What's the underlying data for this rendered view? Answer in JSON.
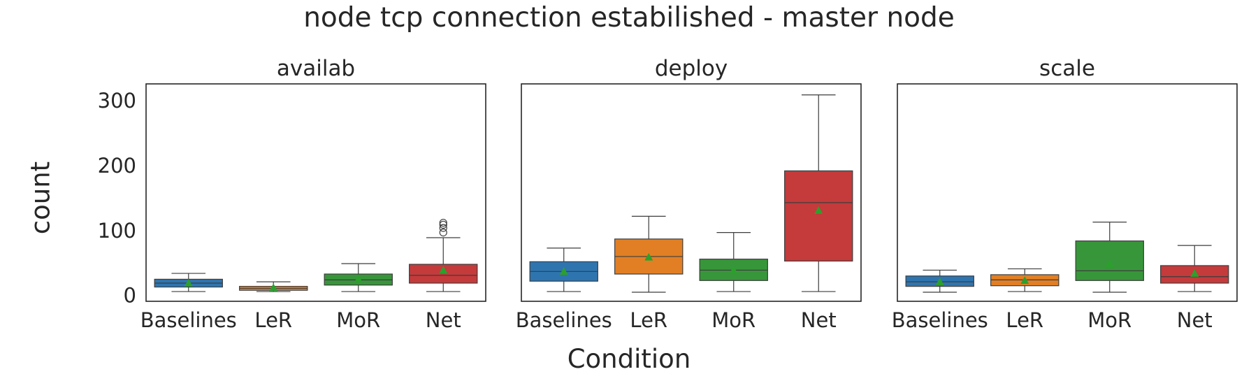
{
  "chart_data": {
    "type": "box",
    "title": "node tcp connection estabilished - master node",
    "xlabel": "Condition",
    "ylabel": "count",
    "ylim": [
      -10,
      325
    ],
    "yticks": [
      0,
      100,
      200,
      300
    ],
    "grid": false,
    "categories": [
      "Baselines",
      "LeR",
      "MoR",
      "Net"
    ],
    "colors": [
      "#2e75b0",
      "#e27f24",
      "#37963a",
      "#c53a3b"
    ],
    "mean_marker_color": "#2ca02c",
    "panels": [
      {
        "title": "availab",
        "boxes": [
          {
            "category": "Baselines",
            "whislo": 5,
            "q1": 12,
            "med": 18,
            "q3": 24,
            "whishi": 33,
            "mean": 18,
            "fliers": []
          },
          {
            "category": "LeR",
            "whislo": 5,
            "q1": 7,
            "med": 10,
            "q3": 13,
            "whishi": 20,
            "mean": 11,
            "fliers": []
          },
          {
            "category": "MoR",
            "whislo": 5,
            "q1": 15,
            "med": 23,
            "q3": 32,
            "whishi": 48,
            "mean": 24,
            "fliers": []
          },
          {
            "category": "Net",
            "whislo": 5,
            "q1": 18,
            "med": 30,
            "q3": 47,
            "whishi": 88,
            "mean": 38,
            "fliers": [
              96,
              103,
              108,
              111
            ]
          }
        ]
      },
      {
        "title": "deploy",
        "boxes": [
          {
            "category": "Baselines",
            "whislo": 5,
            "q1": 21,
            "med": 36,
            "q3": 51,
            "whishi": 72,
            "mean": 36,
            "fliers": []
          },
          {
            "category": "LeR",
            "whislo": 4,
            "q1": 32,
            "med": 59,
            "q3": 86,
            "whishi": 121,
            "mean": 58,
            "fliers": []
          },
          {
            "category": "MoR",
            "whislo": 5,
            "q1": 22,
            "med": 38,
            "q3": 55,
            "whishi": 96,
            "mean": 38,
            "fliers": []
          },
          {
            "category": "Net",
            "whislo": 5,
            "q1": 52,
            "med": 142,
            "q3": 191,
            "whishi": 308,
            "mean": 130,
            "fliers": []
          }
        ]
      },
      {
        "title": "scale",
        "boxes": [
          {
            "category": "Baselines",
            "whislo": 4,
            "q1": 13,
            "med": 20,
            "q3": 29,
            "whishi": 38,
            "mean": 20,
            "fliers": []
          },
          {
            "category": "LeR",
            "whislo": 5,
            "q1": 14,
            "med": 23,
            "q3": 31,
            "whishi": 40,
            "mean": 22,
            "fliers": []
          },
          {
            "category": "MoR",
            "whislo": 4,
            "q1": 22,
            "med": 37,
            "q3": 83,
            "whishi": 112,
            "mean": 48,
            "fliers": []
          },
          {
            "category": "Net",
            "whislo": 5,
            "q1": 18,
            "med": 28,
            "q3": 45,
            "whishi": 76,
            "mean": 33,
            "fliers": []
          }
        ]
      }
    ]
  }
}
